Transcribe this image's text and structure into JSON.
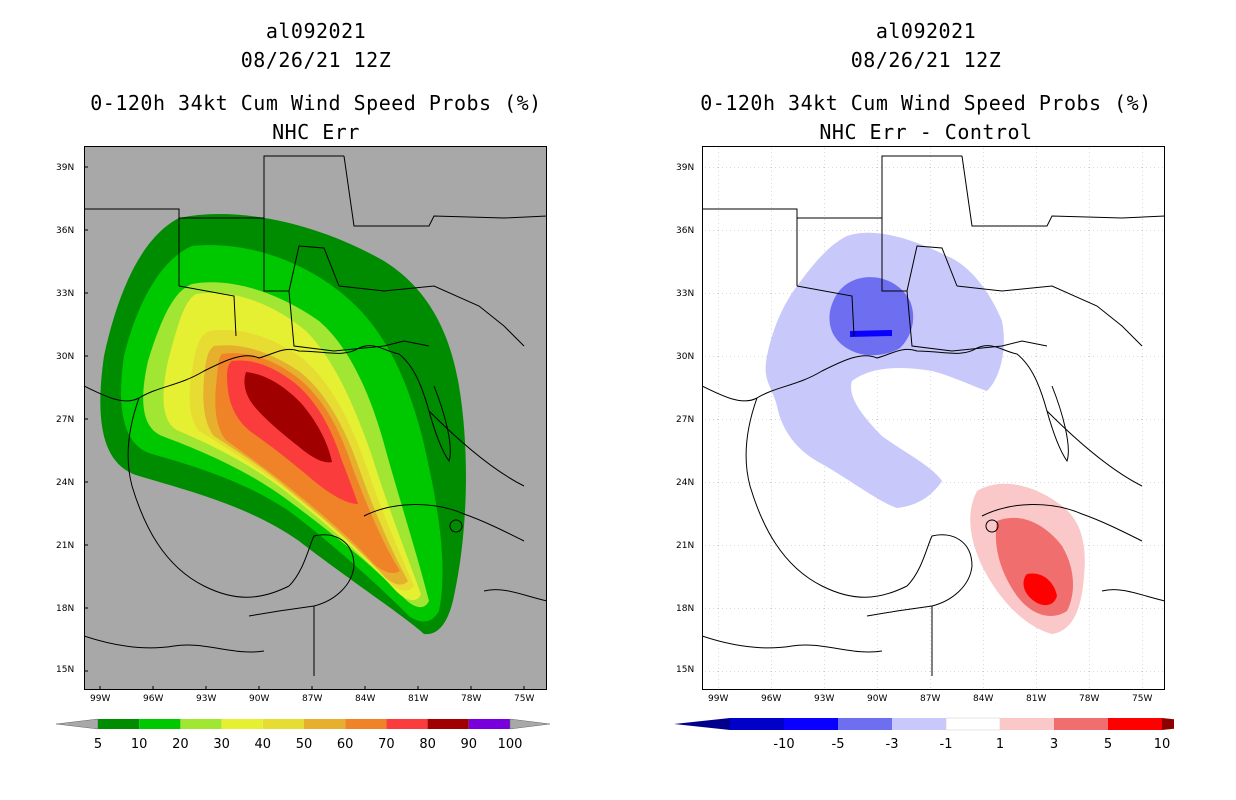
{
  "left_panel": {
    "storm_id": "al092021",
    "datetime": "08/26/21 12Z",
    "title": "0-120h 34kt Cum Wind Speed Probs (%)",
    "subtitle": "NHC Err",
    "background": "#a8a8a8",
    "colorbar": {
      "labels": [
        "5",
        "10",
        "20",
        "30",
        "40",
        "50",
        "60",
        "70",
        "80",
        "90",
        "100"
      ],
      "colors": [
        "#008c00",
        "#00c800",
        "#a0e632",
        "#e6f032",
        "#e6dc32",
        "#e6af2d",
        "#f08228",
        "#fa3c3c",
        "#a00000",
        "#7800dc"
      ],
      "end_color": "#a8a8a8"
    }
  },
  "right_panel": {
    "storm_id": "al092021",
    "datetime": "08/26/21 12Z",
    "title": "0-120h 34kt Cum Wind Speed Probs (%)",
    "subtitle": "NHC Err - Control",
    "background": "#ffffff",
    "colorbar": {
      "labels": [
        "-10",
        "-5",
        "-3",
        "-1",
        "1",
        "3",
        "5",
        "10"
      ],
      "colors": [
        "#0000c8",
        "#0a00ff",
        "#6e6ef0",
        "#c8c8fa",
        "#ffffff",
        "#fac8c8",
        "#f06e6e",
        "#ff0000"
      ],
      "low_end": "#00008c",
      "high_end": "#8c0000"
    }
  },
  "axes": {
    "lat_labels": [
      "39N",
      "36N",
      "33N",
      "30N",
      "27N",
      "24N",
      "21N",
      "18N",
      "15N"
    ],
    "lon_labels": [
      "99W",
      "96W",
      "93W",
      "90W",
      "87W",
      "84W",
      "81W",
      "78W",
      "75W"
    ]
  }
}
